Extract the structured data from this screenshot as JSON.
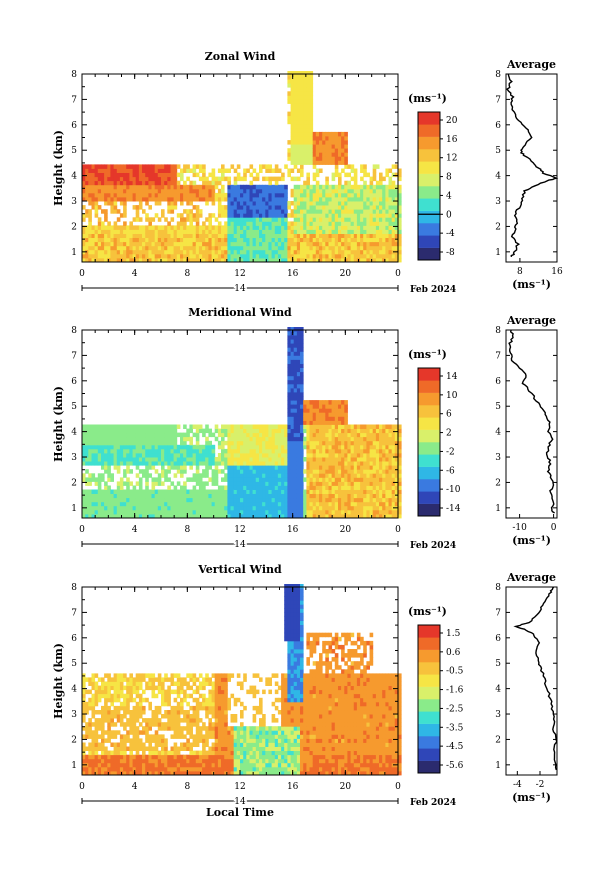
{
  "chart_data": [
    {
      "type": "heatmap",
      "title": "Zonal Wind",
      "ylabel": "Height (km)",
      "x_ticks": [
        "0",
        "4",
        "8",
        "12",
        "16",
        "20",
        "0"
      ],
      "y_ticks": [
        "1",
        "2",
        "3",
        "4",
        "5",
        "6",
        "7",
        "8"
      ],
      "xlim": [
        0,
        24
      ],
      "ylim": [
        0.6,
        8
      ],
      "date_day": "14",
      "date_label": "Feb 2024",
      "colorbar": {
        "unit": "(ms⁻¹)",
        "ticks": [
          "20",
          "16",
          "12",
          "8",
          "4",
          "0",
          "-4",
          "-8"
        ],
        "range": [
          -10,
          22
        ],
        "contour_at": "0"
      },
      "profile": {
        "title": "Average",
        "x_ticks": [
          "8",
          "16"
        ],
        "xlim": [
          5,
          16
        ],
        "xlabel": "(ms⁻¹)",
        "points": [
          [
            6,
            0.8
          ],
          [
            7,
            1.0
          ],
          [
            7.5,
            1.3
          ],
          [
            6.5,
            1.6
          ],
          [
            7,
            1.9
          ],
          [
            7.5,
            2.2
          ],
          [
            7,
            2.5
          ],
          [
            8,
            2.8
          ],
          [
            8.5,
            3.1
          ],
          [
            9,
            3.4
          ],
          [
            11,
            3.6
          ],
          [
            14,
            3.8
          ],
          [
            16,
            3.9
          ],
          [
            13,
            4.1
          ],
          [
            12,
            4.3
          ],
          [
            11,
            4.5
          ],
          [
            9,
            4.8
          ],
          [
            8,
            5.0
          ],
          [
            9,
            5.2
          ],
          [
            10.5,
            5.5
          ],
          [
            10,
            5.8
          ],
          [
            8,
            6.1
          ],
          [
            7,
            6.4
          ],
          [
            6,
            6.8
          ],
          [
            6.5,
            7.1
          ],
          [
            5.5,
            7.4
          ],
          [
            6,
            7.7
          ],
          [
            5.5,
            8.0
          ]
        ]
      }
    },
    {
      "type": "heatmap",
      "title": "Meridional Wind",
      "ylabel": "Height (km)",
      "x_ticks": [
        "0",
        "4",
        "8",
        "12",
        "16",
        "20",
        "0"
      ],
      "y_ticks": [
        "1",
        "2",
        "3",
        "4",
        "5",
        "6",
        "7",
        "8"
      ],
      "xlim": [
        0,
        24
      ],
      "ylim": [
        0.6,
        8
      ],
      "date_day": "14",
      "date_label": "Feb 2024",
      "colorbar": {
        "unit": "(ms⁻¹)",
        "ticks": [
          "14",
          "10",
          "6",
          "2",
          "-2",
          "-6",
          "-10",
          "-14"
        ],
        "range": [
          -16,
          16
        ],
        "contour_at": "0"
      },
      "profile": {
        "title": "Average",
        "x_ticks": [
          "-10",
          "0"
        ],
        "xlim": [
          -14,
          1
        ],
        "xlabel": "(ms⁻¹)",
        "points": [
          [
            0,
            0.8
          ],
          [
            -0.5,
            1.0
          ],
          [
            0,
            1.3
          ],
          [
            -1,
            1.6
          ],
          [
            0,
            1.9
          ],
          [
            -1,
            2.2
          ],
          [
            -1.5,
            2.5
          ],
          [
            -1,
            2.8
          ],
          [
            -2,
            3.1
          ],
          [
            -1.5,
            3.4
          ],
          [
            -0.5,
            3.7
          ],
          [
            -1.5,
            4.0
          ],
          [
            -1,
            4.3
          ],
          [
            -2,
            4.6
          ],
          [
            -3.5,
            4.9
          ],
          [
            -5,
            5.2
          ],
          [
            -7,
            5.6
          ],
          [
            -9,
            5.9
          ],
          [
            -8,
            6.2
          ],
          [
            -10,
            6.5
          ],
          [
            -12,
            6.8
          ],
          [
            -12.5,
            7.1
          ],
          [
            -13,
            7.4
          ],
          [
            -12,
            7.7
          ],
          [
            -12.5,
            8.0
          ]
        ]
      }
    },
    {
      "type": "heatmap",
      "title": "Vertical Wind",
      "ylabel": "Height (km)",
      "xlabel": "Local Time",
      "x_ticks": [
        "0",
        "4",
        "8",
        "12",
        "16",
        "20",
        "0"
      ],
      "y_ticks": [
        "1",
        "2",
        "3",
        "4",
        "5",
        "6",
        "7",
        "8"
      ],
      "xlim": [
        0,
        24
      ],
      "ylim": [
        0.6,
        8
      ],
      "date_day": "14",
      "date_label": "Feb 2024",
      "colorbar": {
        "unit": "(ms⁻¹)",
        "ticks": [
          "1.5",
          "0.6",
          "-0.5",
          "-1.6",
          "-2.5",
          "-3.5",
          "-4.5",
          "-5.6"
        ],
        "range": [
          -6.2,
          2.1
        ]
      },
      "profile": {
        "title": "Average",
        "x_ticks": [
          "-4",
          "-2"
        ],
        "xlim": [
          -5,
          -0.5
        ],
        "xlabel": "(ms⁻¹)",
        "points": [
          [
            -0.6,
            0.8
          ],
          [
            -0.8,
            1.2
          ],
          [
            -0.7,
            1.6
          ],
          [
            -0.6,
            2.0
          ],
          [
            -0.8,
            2.4
          ],
          [
            -0.7,
            2.8
          ],
          [
            -0.9,
            3.2
          ],
          [
            -1.1,
            3.6
          ],
          [
            -1.4,
            4.0
          ],
          [
            -1.6,
            4.4
          ],
          [
            -1.9,
            4.8
          ],
          [
            -2.1,
            5.1
          ],
          [
            -2.4,
            5.5
          ],
          [
            -2.1,
            5.8
          ],
          [
            -2.5,
            6.1
          ],
          [
            -3.2,
            6.3
          ],
          [
            -4.1,
            6.45
          ],
          [
            -3.0,
            6.6
          ],
          [
            -2.2,
            6.9
          ],
          [
            -1.9,
            7.2
          ],
          [
            -1.5,
            7.5
          ],
          [
            -1.1,
            7.8
          ],
          [
            -0.8,
            8.0
          ]
        ]
      }
    }
  ],
  "colors": {
    "scale": [
      "#2b2b6e",
      "#2f46b8",
      "#3a7ae0",
      "#2fb7e6",
      "#3fe0d0",
      "#8aeb8a",
      "#d9f06a",
      "#f6e545",
      "#f7c23c",
      "#f69a2e",
      "#ef6a28",
      "#e5372a"
    ]
  }
}
